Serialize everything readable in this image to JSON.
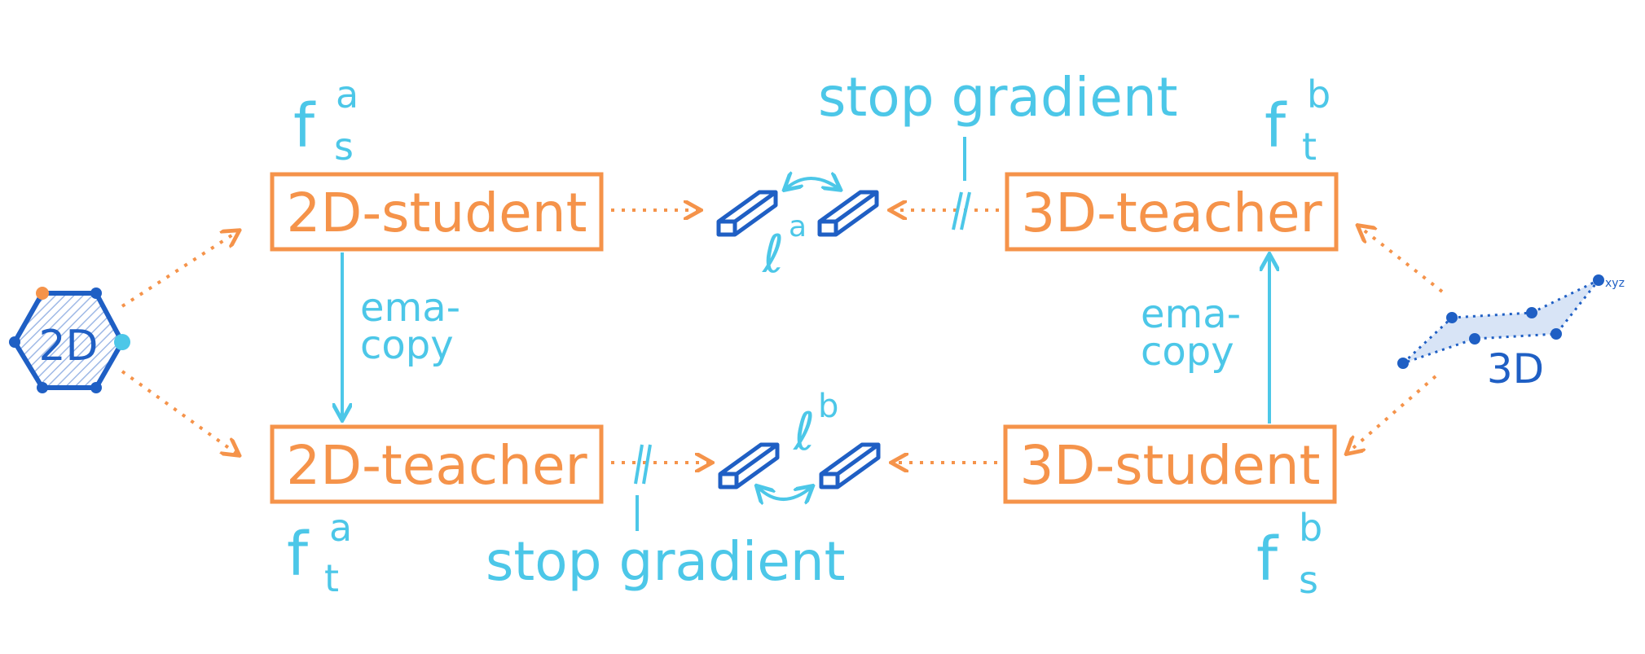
{
  "colors": {
    "orange": "#f5934a",
    "cyan": "#4cc7e8",
    "blue": "#1f5fc4"
  },
  "boxes": {
    "student_2d": "2D-student",
    "teacher_2d": "2D-teacher",
    "teacher_3d": "3D-teacher",
    "student_3d": "3D-student"
  },
  "features": {
    "fsa": {
      "base": "f",
      "sup": "a",
      "sub": "s"
    },
    "fta": {
      "base": "f",
      "sup": "a",
      "sub": "t"
    },
    "ftb": {
      "base": "f",
      "sup": "b",
      "sub": "t"
    },
    "fsb": {
      "base": "f",
      "sup": "b",
      "sub": "s"
    }
  },
  "stop_gradient_top": "stop gradient",
  "stop_gradient_bottom": "stop gradient",
  "ema_left": {
    "line1": "ema-",
    "line2": "copy"
  },
  "ema_right": {
    "line1": "ema-",
    "line2": "copy"
  },
  "loss_top": {
    "symbol": "ℓ",
    "sup": "a"
  },
  "loss_bottom": {
    "symbol": "ℓ",
    "sup": "b"
  },
  "input_2d": "2D",
  "input_3d": "3D",
  "input_3d_axis": "xyz",
  "icons": [
    "hexagon-molecule-icon",
    "point-cloud-icon",
    "feature-bar-icon"
  ]
}
